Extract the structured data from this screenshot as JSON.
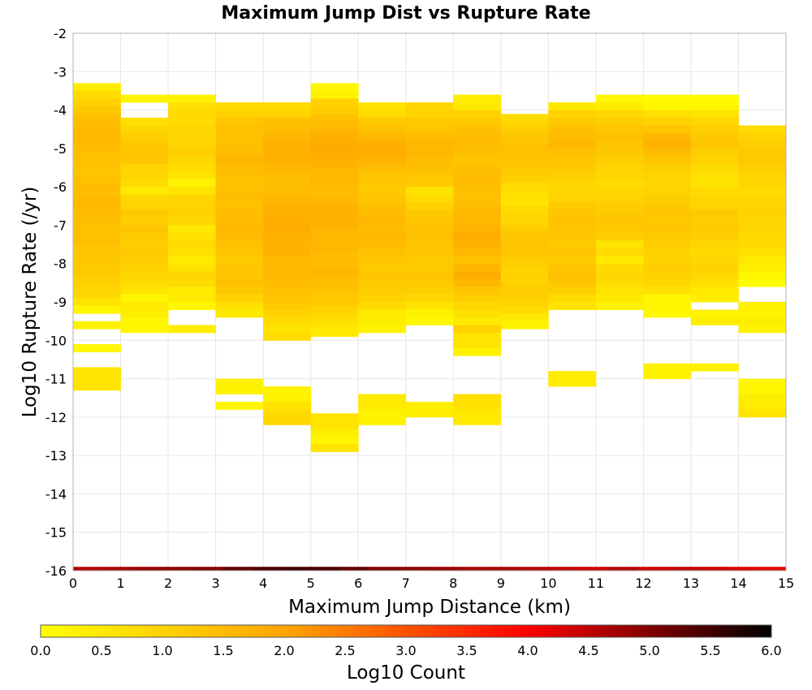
{
  "chart_data": {
    "type": "heatmap",
    "title": "Maximum Jump Dist vs Rupture Rate",
    "xlabel": "Maximum Jump Distance (km)",
    "ylabel": "Log10 Rupture Rate (/yr)",
    "xlim": [
      0,
      15
    ],
    "ylim": [
      -16,
      -2
    ],
    "x_ticks": [
      "0",
      "1",
      "2",
      "3",
      "4",
      "5",
      "6",
      "7",
      "8",
      "9",
      "10",
      "11",
      "12",
      "13",
      "14",
      "15"
    ],
    "y_ticks": [
      "-2",
      "-3",
      "-4",
      "-5",
      "-6",
      "-7",
      "-8",
      "-9",
      "-10",
      "-11",
      "-12",
      "-13",
      "-14",
      "-15",
      "-16"
    ],
    "x_bin_width": 1,
    "y_bin_height": 0.2,
    "grid": true,
    "colorbar": {
      "label": "Log10 Count",
      "range": [
        0,
        6
      ],
      "ticks": [
        "0.0",
        "0.5",
        "1.0",
        "1.5",
        "2.0",
        "2.5",
        "3.0",
        "3.5",
        "4.0",
        "4.5",
        "5.0",
        "5.5",
        "6.0"
      ],
      "colors": [
        "#ffff00",
        "#ffa500",
        "#ff0000",
        "#000000"
      ],
      "placement": "bottom"
    },
    "columns": [
      {
        "x": 0.5,
        "y_start": -3.3,
        "values": [
          0.4,
          0.8,
          1.0,
          1.2,
          1.4,
          1.5,
          1.6,
          1.6,
          1.5,
          1.4,
          1.4,
          1.3,
          1.4,
          1.5,
          1.5,
          1.6,
          1.5,
          1.5,
          1.4,
          1.4,
          1.4,
          1.3,
          1.3,
          1.2,
          1.2,
          1.1,
          1.0,
          0.9,
          0.6,
          0.2,
          0,
          0.3,
          0,
          0,
          0.2,
          0,
          0,
          0.6,
          0.6,
          0.6
        ]
      },
      {
        "x": 1.5,
        "y_start": -3.6,
        "values": [
          0.3,
          0,
          0,
          0.7,
          0.9,
          1.1,
          1.2,
          1.3,
          1.3,
          1.0,
          0.9,
          0.8,
          0.5,
          0.9,
          1.0,
          1.2,
          1.1,
          1.3,
          1.2,
          1.1,
          1.2,
          1.1,
          1.0,
          0.9,
          0.8,
          0.6,
          0.2,
          0.5,
          0.4,
          0.2,
          0.2
        ]
      },
      {
        "x": 2.5,
        "y_start": -3.6,
        "values": [
          0.3,
          0.7,
          0.8,
          0.8,
          0.9,
          0.9,
          1.0,
          1.1,
          0.9,
          0.8,
          0.6,
          0.3,
          0.6,
          0.9,
          1.0,
          1.0,
          0.9,
          0.5,
          0.7,
          0.8,
          0.7,
          0.5,
          0.6,
          0.9,
          0.8,
          0.5,
          0.5,
          0.2,
          0,
          0,
          0.4
        ]
      },
      {
        "x": 3.5,
        "y_start": -3.8,
        "values": [
          0.8,
          1.0,
          1.3,
          1.4,
          1.4,
          1.4,
          1.5,
          1.6,
          1.5,
          1.4,
          1.4,
          1.4,
          1.5,
          1.4,
          1.5,
          1.5,
          1.6,
          1.5,
          1.4,
          1.3,
          1.2,
          1.3,
          1.3,
          1.4,
          1.2,
          1.0,
          0.7,
          0.5,
          0,
          0,
          0,
          0,
          0,
          0,
          0,
          0,
          0.3,
          0.3,
          0,
          0.2
        ]
      },
      {
        "x": 4.5,
        "y_start": -3.8,
        "values": [
          0.8,
          1.0,
          1.4,
          1.5,
          1.6,
          1.7,
          1.7,
          1.7,
          1.6,
          1.5,
          1.4,
          1.5,
          1.6,
          1.7,
          1.7,
          1.8,
          1.8,
          1.7,
          1.7,
          1.7,
          1.6,
          1.6,
          1.6,
          1.5,
          1.4,
          1.3,
          1.2,
          1.0,
          0.8,
          0.6,
          0.8,
          0,
          0,
          0,
          0,
          0,
          0,
          0.3,
          0.3,
          0.6,
          0.8,
          0.9
        ]
      },
      {
        "x": 5.5,
        "y_start": -3.3,
        "values": [
          0.2,
          0.3,
          1.0,
          1.1,
          1.4,
          1.5,
          1.7,
          1.8,
          1.9,
          1.8,
          1.7,
          1.6,
          1.6,
          1.5,
          1.5,
          1.6,
          1.7,
          1.7,
          1.7,
          1.6,
          1.6,
          1.6,
          1.5,
          1.5,
          1.6,
          1.5,
          1.4,
          1.3,
          1.2,
          1.0,
          0.8,
          0.6,
          0.5,
          0,
          0,
          0,
          0,
          0,
          0,
          0,
          0,
          0,
          0,
          0.6,
          0.6,
          0.4,
          0.2,
          0.6
        ]
      },
      {
        "x": 6.5,
        "y_start": -3.8,
        "values": [
          0.6,
          0.8,
          1.2,
          1.4,
          1.6,
          1.8,
          1.8,
          1.7,
          1.5,
          1.3,
          1.3,
          1.2,
          1.3,
          1.4,
          1.5,
          1.6,
          1.5,
          1.6,
          1.5,
          1.4,
          1.3,
          1.2,
          1.3,
          1.2,
          1.1,
          1.0,
          0.8,
          0.5,
          0.4,
          0.3,
          0,
          0,
          0,
          0,
          0,
          0,
          0,
          0,
          0.5,
          0.5,
          0.3,
          0.3
        ]
      },
      {
        "x": 7.5,
        "y_start": -3.8,
        "values": [
          0.9,
          1.0,
          1.2,
          1.3,
          1.5,
          1.6,
          1.6,
          1.5,
          1.4,
          1.3,
          1.2,
          0.6,
          0.8,
          1.0,
          1.2,
          1.3,
          1.4,
          1.4,
          1.3,
          1.3,
          1.2,
          1.2,
          1.3,
          1.2,
          1.1,
          0.9,
          0.6,
          0.3,
          0.2,
          0,
          0,
          0,
          0,
          0,
          0,
          0,
          0,
          0,
          0,
          0.4,
          0.4
        ]
      },
      {
        "x": 8.5,
        "y_start": -3.6,
        "values": [
          0.4,
          0.5,
          1.0,
          1.2,
          1.4,
          1.5,
          1.5,
          1.4,
          1.3,
          1.4,
          1.5,
          1.5,
          1.4,
          1.4,
          1.5,
          1.6,
          1.6,
          1.7,
          1.8,
          1.7,
          1.6,
          1.4,
          1.6,
          1.8,
          1.6,
          1.3,
          1.1,
          0.9,
          0.7,
          0.5,
          1.0,
          0.6,
          0.6,
          0.3,
          0,
          0,
          0,
          0,
          0,
          0.7,
          0.7,
          0.5,
          0.5
        ]
      },
      {
        "x": 9.5,
        "y_start": -4.1,
        "values": [
          0.8,
          1.0,
          1.2,
          1.3,
          1.4,
          1.4,
          1.3,
          1.2,
          1.1,
          0.8,
          0.7,
          0.6,
          0.8,
          0.9,
          1.0,
          1.2,
          1.3,
          1.3,
          1.2,
          1.1,
          1.0,
          1.0,
          1.1,
          1.1,
          1.0,
          0.8,
          0.5,
          0.3
        ]
      },
      {
        "x": 10.5,
        "y_start": -3.8,
        "values": [
          0.5,
          1.0,
          1.2,
          1.4,
          1.5,
          1.6,
          1.4,
          1.3,
          1.2,
          1.1,
          1.0,
          0.9,
          1.0,
          1.2,
          1.3,
          1.4,
          1.3,
          1.3,
          1.2,
          1.3,
          1.2,
          1.3,
          1.4,
          1.3,
          1.1,
          0.8,
          0.6,
          0,
          0,
          0,
          0,
          0,
          0,
          0,
          0,
          0.4,
          0.4
        ]
      },
      {
        "x": 11.5,
        "y_start": -3.6,
        "values": [
          0.2,
          0.4,
          0.9,
          1.1,
          1.3,
          1.4,
          1.3,
          1.2,
          1.1,
          1.0,
          0.9,
          0.8,
          0.9,
          1.0,
          1.1,
          1.2,
          1.3,
          1.2,
          1.1,
          0.6,
          0.8,
          0.5,
          0.8,
          0.9,
          0.8,
          0.6,
          0.5,
          0.3
        ]
      },
      {
        "x": 12.5,
        "y_start": -3.6,
        "values": [
          0.1,
          0.2,
          0.7,
          1.0,
          1.3,
          1.6,
          1.7,
          1.5,
          1.3,
          1.1,
          1.0,
          0.9,
          1.0,
          1.1,
          1.2,
          1.3,
          1.2,
          1.3,
          1.2,
          1.1,
          1.0,
          1.0,
          1.1,
          1.0,
          0.9,
          0.7,
          0.2,
          0.2,
          0.2,
          0,
          0,
          0,
          0,
          0,
          0,
          0.3,
          0.3
        ]
      },
      {
        "x": 13.5,
        "y_start": -3.6,
        "values": [
          0.1,
          0.2,
          0.6,
          0.9,
          1.1,
          1.2,
          1.3,
          1.1,
          1.0,
          0.8,
          0.7,
          0.6,
          0.8,
          0.9,
          1.0,
          1.2,
          1.1,
          1.2,
          1.1,
          0.9,
          0.8,
          0.9,
          1.0,
          0.9,
          0.7,
          0.5,
          0.4,
          0,
          0.3,
          0.4,
          0,
          0,
          0,
          0,
          0,
          0.3
        ]
      },
      {
        "x": 14.5,
        "y_start": -4.4,
        "values": [
          0.8,
          1.0,
          1.1,
          1.2,
          1.2,
          1.1,
          1.0,
          0.9,
          0.8,
          0.9,
          1.0,
          1.0,
          0.9,
          0.9,
          0.8,
          0.8,
          0.7,
          0.5,
          0.4,
          0.2,
          0.1,
          0,
          0,
          0.3,
          0.3,
          0.4,
          0.3,
          0,
          0,
          0,
          0,
          0,
          0,
          0.2,
          0.2,
          0.4,
          0.4,
          0.6
        ]
      }
    ],
    "baseline_row": {
      "y_start": -16.0,
      "y_end": -15.9,
      "values": [
        4.6,
        4.7,
        4.8,
        4.9,
        5.0,
        5.2,
        5.4,
        5.5,
        5.4,
        5.2,
        5.0,
        4.9,
        4.8,
        4.7,
        4.7,
        4.6,
        4.5,
        4.4,
        4.6,
        4.4,
        4.5,
        4.4,
        4.3,
        4.2
      ]
    }
  }
}
